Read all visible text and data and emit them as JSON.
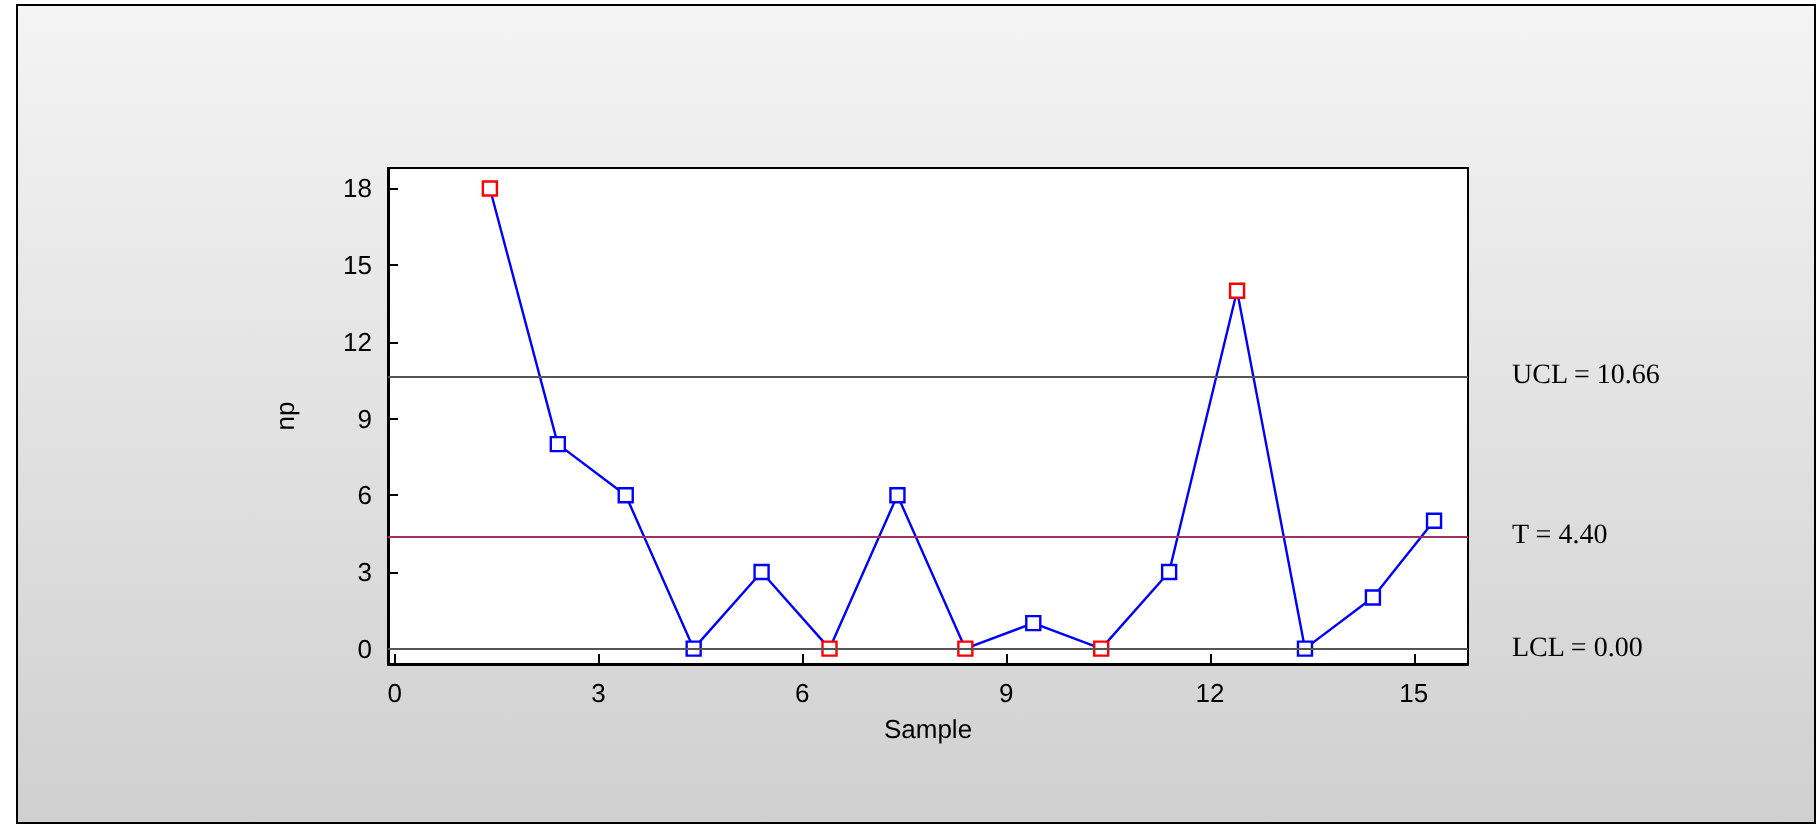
{
  "chart_data": {
    "type": "line",
    "xlabel": "Sample",
    "ylabel": "np",
    "x": [
      1.4,
      2.4,
      3.4,
      4.4,
      5.4,
      6.4,
      7.4,
      8.4,
      9.4,
      10.4,
      11.4,
      12.4,
      13.4,
      14.4,
      15.3
    ],
    "series": [
      {
        "color": "#0000ff",
        "values": [
          18,
          8,
          6,
          0,
          3,
          0,
          6,
          0,
          1,
          0,
          3,
          14,
          0,
          2,
          5
        ],
        "colors": [
          "#ff0000",
          "#0000ff",
          "#0000ff",
          "#0000ff",
          "#0000ff",
          "#ff0000",
          "#0000ff",
          "#ff0000",
          "#0000ff",
          "#ff0000",
          "#0000ff",
          "#ff0000",
          "#0000ff",
          "#0000ff",
          "#0000ff"
        ]
      }
    ],
    "xlim": [
      -0.1,
      15.8
    ],
    "xticks": [
      0,
      3,
      6,
      9,
      12,
      15
    ],
    "ylim": [
      -0.6,
      18.8
    ],
    "yticks": [
      0,
      3,
      6,
      9,
      12,
      15,
      18
    ],
    "ref_lines": [
      {
        "axis": "y",
        "value": 10.66,
        "label": "UCL = 10.66",
        "color": "#555555"
      },
      {
        "axis": "y",
        "value": 4.4,
        "label": "T = 4.40",
        "color": "#993366"
      },
      {
        "axis": "y",
        "value": 0,
        "label": "LCL = 0.00",
        "color": "#555555"
      }
    ],
    "marker": "square",
    "line_style": "solid",
    "grid": false
  }
}
